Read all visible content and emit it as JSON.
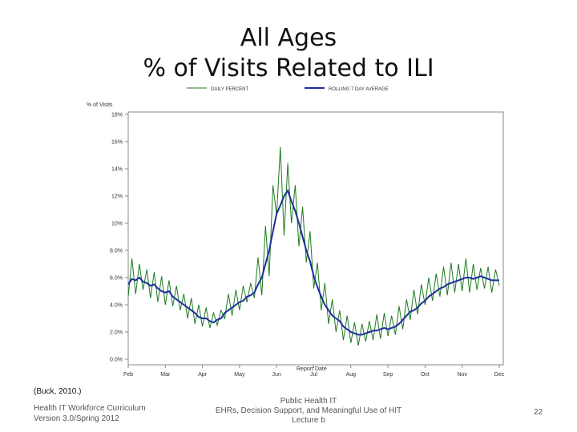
{
  "slide": {
    "title_line1": "All Ages",
    "title_line2": "% of Visits Related to ILI",
    "citation": "(Buck, 2010.)",
    "footer_left_line1": "Health IT Workforce Curriculum",
    "footer_left_line2": "Version 3.0/Spring 2012",
    "footer_center_line1": "Public Health IT",
    "footer_center_line2": "EHRs, Decision Support, and Meaningful Use of HIT",
    "footer_center_line3": "Lecture b",
    "page_number": "22"
  },
  "chart_data": {
    "type": "line",
    "ylabel": "% of Visits",
    "xlabel": "Report Date",
    "ylim": [
      0,
      16
    ],
    "y_ticks": [
      "0.0%",
      "2.0%",
      "4.0%",
      "6.0%",
      "8.0%",
      "10%",
      "12%",
      "14%",
      "16%",
      "18%"
    ],
    "x_ticks": [
      "Feb",
      "Mar",
      "Apr",
      "May",
      "Jun",
      "Jul",
      "Aug",
      "Sep",
      "Oct",
      "Nov",
      "Dec"
    ],
    "xlim": [
      0,
      10
    ],
    "grid": false,
    "legend_position": "top",
    "series": [
      {
        "name": "DAILY PERCENT",
        "color": "#1e7a1e",
        "x": [
          0.0,
          0.1,
          0.2,
          0.3,
          0.4,
          0.5,
          0.6,
          0.7,
          0.8,
          0.9,
          1.0,
          1.1,
          1.2,
          1.3,
          1.4,
          1.5,
          1.6,
          1.7,
          1.8,
          1.9,
          2.0,
          2.1,
          2.2,
          2.3,
          2.4,
          2.5,
          2.6,
          2.7,
          2.8,
          2.9,
          3.0,
          3.1,
          3.2,
          3.3,
          3.4,
          3.5,
          3.6,
          3.7,
          3.8,
          3.9,
          4.0,
          4.1,
          4.2,
          4.3,
          4.4,
          4.5,
          4.6,
          4.7,
          4.8,
          4.9,
          5.0,
          5.1,
          5.2,
          5.3,
          5.4,
          5.5,
          5.6,
          5.7,
          5.8,
          5.9,
          6.0,
          6.1,
          6.2,
          6.3,
          6.4,
          6.5,
          6.6,
          6.7,
          6.8,
          6.9,
          7.0,
          7.1,
          7.2,
          7.3,
          7.4,
          7.5,
          7.6,
          7.7,
          7.8,
          7.9,
          8.0,
          8.1,
          8.2,
          8.3,
          8.4,
          8.5,
          8.6,
          8.7,
          8.8,
          8.9,
          9.0,
          9.1,
          9.2,
          9.3,
          9.4,
          9.5,
          9.6,
          9.7,
          9.8,
          9.9,
          10.0
        ],
        "values": [
          4.6,
          7.4,
          4.8,
          7.0,
          5.1,
          6.6,
          4.5,
          6.4,
          4.2,
          6.1,
          4.0,
          5.8,
          3.9,
          5.4,
          3.6,
          4.8,
          3.0,
          4.5,
          2.6,
          4.0,
          2.4,
          3.8,
          2.3,
          3.4,
          2.5,
          3.6,
          3.0,
          4.8,
          3.2,
          5.1,
          3.6,
          5.4,
          4.2,
          5.6,
          4.5,
          7.5,
          4.7,
          9.8,
          6.1,
          12.8,
          10.6,
          15.6,
          9.1,
          14.4,
          10.0,
          12.8,
          8.3,
          11.2,
          7.1,
          9.4,
          5.2,
          7.1,
          3.6,
          5.6,
          2.6,
          4.4,
          2.0,
          3.6,
          1.4,
          3.2,
          1.2,
          2.7,
          1.0,
          2.6,
          1.3,
          2.8,
          1.4,
          3.3,
          1.5,
          3.4,
          1.7,
          3.2,
          1.8,
          3.9,
          2.2,
          4.4,
          2.9,
          5.1,
          3.3,
          5.5,
          4.0,
          6.0,
          4.3,
          6.3,
          4.6,
          6.8,
          4.7,
          7.1,
          4.9,
          7.0,
          5.0,
          7.4,
          4.9,
          7.0,
          5.1,
          6.7,
          5.2,
          6.8,
          4.9,
          6.6,
          5.4
        ]
      },
      {
        "name": "ROLLING 7 DAY AVERAGE",
        "color": "#1c2f9e",
        "x": [
          0.0,
          0.1,
          0.2,
          0.3,
          0.4,
          0.5,
          0.6,
          0.7,
          0.8,
          0.9,
          1.0,
          1.1,
          1.2,
          1.3,
          1.4,
          1.5,
          1.6,
          1.7,
          1.8,
          1.9,
          2.0,
          2.1,
          2.2,
          2.3,
          2.4,
          2.5,
          2.6,
          2.7,
          2.8,
          2.9,
          3.0,
          3.1,
          3.2,
          3.3,
          3.4,
          3.5,
          3.6,
          3.7,
          3.8,
          3.9,
          4.0,
          4.1,
          4.2,
          4.3,
          4.4,
          4.5,
          4.6,
          4.7,
          4.8,
          4.9,
          5.0,
          5.1,
          5.2,
          5.3,
          5.4,
          5.5,
          5.6,
          5.7,
          5.8,
          5.9,
          6.0,
          6.1,
          6.2,
          6.3,
          6.4,
          6.5,
          6.6,
          6.7,
          6.8,
          6.9,
          7.0,
          7.1,
          7.2,
          7.3,
          7.4,
          7.5,
          7.6,
          7.7,
          7.8,
          7.9,
          8.0,
          8.1,
          8.2,
          8.3,
          8.4,
          8.5,
          8.6,
          8.7,
          8.8,
          8.9,
          9.0,
          9.1,
          9.2,
          9.3,
          9.4,
          9.5,
          9.6,
          9.7,
          9.8,
          9.9,
          10.0
        ],
        "values": [
          5.5,
          5.9,
          5.8,
          6.0,
          5.7,
          5.6,
          5.4,
          5.5,
          5.2,
          5.0,
          4.9,
          5.0,
          4.6,
          4.4,
          4.2,
          4.0,
          3.8,
          3.6,
          3.4,
          3.1,
          3.0,
          3.0,
          2.8,
          2.7,
          2.9,
          3.0,
          3.4,
          3.6,
          3.8,
          4.0,
          4.2,
          4.3,
          4.6,
          4.7,
          4.9,
          5.5,
          6.0,
          7.0,
          8.0,
          9.4,
          10.7,
          11.3,
          12.0,
          12.4,
          11.6,
          10.9,
          10.0,
          9.0,
          8.0,
          7.2,
          6.1,
          5.3,
          4.6,
          4.0,
          3.6,
          3.2,
          3.0,
          2.8,
          2.4,
          2.2,
          2.0,
          1.9,
          1.8,
          1.8,
          1.9,
          2.0,
          2.1,
          2.1,
          2.2,
          2.3,
          2.2,
          2.3,
          2.4,
          2.6,
          2.9,
          3.2,
          3.5,
          3.6,
          3.8,
          4.1,
          4.3,
          4.6,
          4.8,
          5.0,
          5.2,
          5.3,
          5.5,
          5.6,
          5.7,
          5.8,
          5.9,
          6.0,
          6.0,
          5.9,
          6.0,
          6.1,
          6.0,
          5.9,
          5.8,
          5.8,
          5.8
        ]
      }
    ]
  }
}
